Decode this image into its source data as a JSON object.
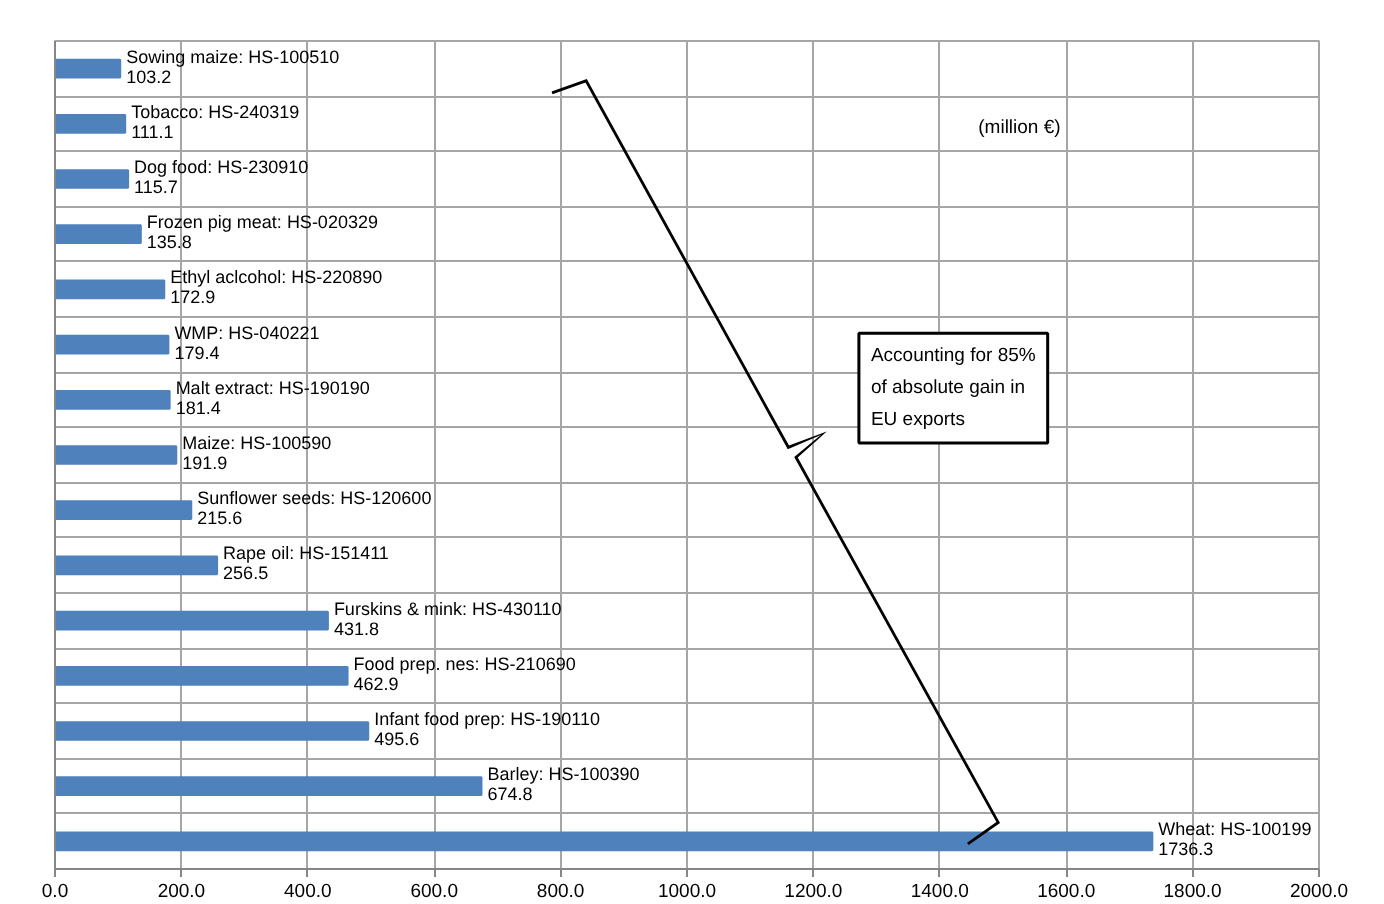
{
  "chart_data": {
    "type": "bar",
    "orientation": "horizontal",
    "categories": [
      "Sowing maize: HS-100510",
      "Tobacco: HS-240319",
      "Dog food: HS-230910",
      "Frozen pig meat: HS-020329",
      "Ethyl aclcohol: HS-220890",
      "WMP: HS-040221",
      "Malt extract: HS-190190",
      "Maize: HS-100590",
      "Sunflower seeds: HS-120600",
      "Rape oil: HS-151411",
      "Furskins & mink: HS-430110",
      "Food prep. nes: HS-210690",
      "Infant food prep: HS-190110",
      "Barley: HS-100390",
      "Wheat: HS-100199"
    ],
    "values": [
      103.2,
      111.1,
      115.7,
      135.8,
      172.9,
      179.4,
      181.4,
      191.9,
      215.6,
      256.5,
      431.8,
      462.9,
      495.6,
      674.8,
      1736.3
    ],
    "color": "#4f81bd",
    "xlim": [
      0,
      2000
    ],
    "xticks": [
      {
        "value": 0,
        "label": "0.0"
      },
      {
        "value": 200,
        "label": "200.0"
      },
      {
        "value": 400,
        "label": "400.0"
      },
      {
        "value": 600,
        "label": "600.0"
      },
      {
        "value": 800,
        "label": "800.0"
      },
      {
        "value": 1000,
        "label": "1000.0"
      },
      {
        "value": 1200,
        "label": "1200.0"
      },
      {
        "value": 1400,
        "label": "1400.0"
      },
      {
        "value": 1600,
        "label": "1600.0"
      },
      {
        "value": 1800,
        "label": "1800.0"
      },
      {
        "value": 2000,
        "label": "2000.0"
      }
    ],
    "grid": true,
    "data_labels": true,
    "tick_labels": "x",
    "annotations": [
      "(million €)",
      "Accounting for 85% of absolute gain in EU exports"
    ]
  }
}
